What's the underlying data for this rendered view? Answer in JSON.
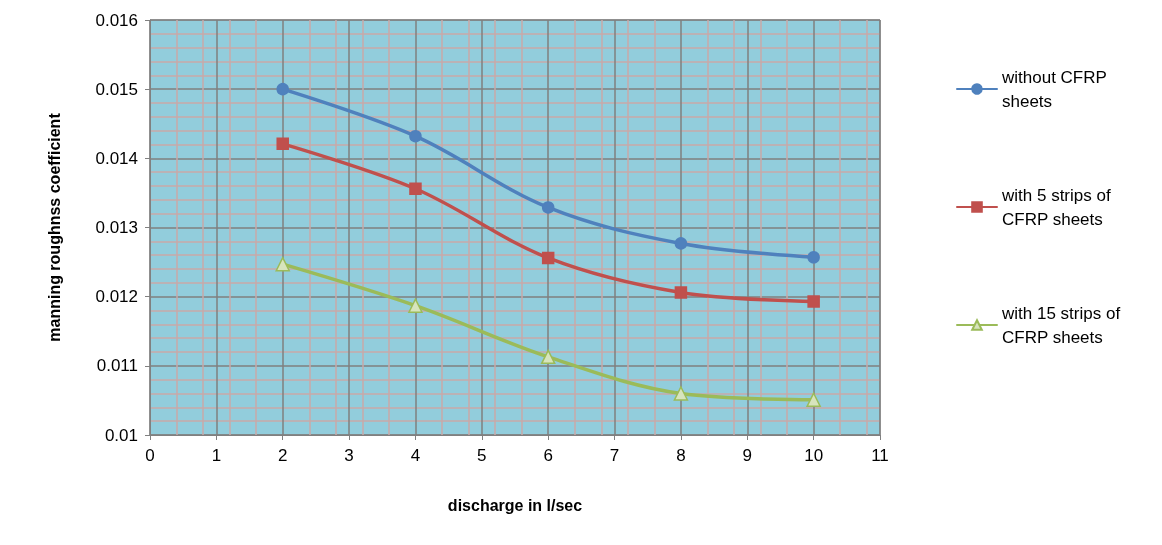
{
  "chart_data": {
    "type": "line",
    "xlabel": "discharge in l/sec",
    "ylabel": "manning roughnss coefficient",
    "x": [
      2,
      4,
      6,
      8,
      10
    ],
    "series": [
      {
        "name": "without CFRP sheets",
        "color": "#4f81bd",
        "marker": "circle",
        "values": [
          0.015,
          0.01432,
          0.01329,
          0.01277,
          0.01257
        ]
      },
      {
        "name": "with 5 strips of CFRP sheets",
        "color": "#c0504d",
        "marker": "square",
        "values": [
          0.01421,
          0.01356,
          0.01256,
          0.01206,
          0.01193
        ]
      },
      {
        "name": "with 15 strips of CFRP sheets",
        "color": "#9bbb59",
        "marker": "triangle",
        "values": [
          0.01247,
          0.01187,
          0.01113,
          0.0106,
          0.01051
        ]
      }
    ],
    "xlim": [
      0,
      11
    ],
    "xticks": [
      0,
      1,
      2,
      3,
      4,
      5,
      6,
      7,
      8,
      9,
      10,
      11
    ],
    "ylim": [
      0.01,
      0.016
    ],
    "yticks": [
      0.01,
      0.011,
      0.012,
      0.013,
      0.014,
      0.015,
      0.016
    ],
    "grid": true,
    "legend": "right",
    "line_style": "solid"
  }
}
